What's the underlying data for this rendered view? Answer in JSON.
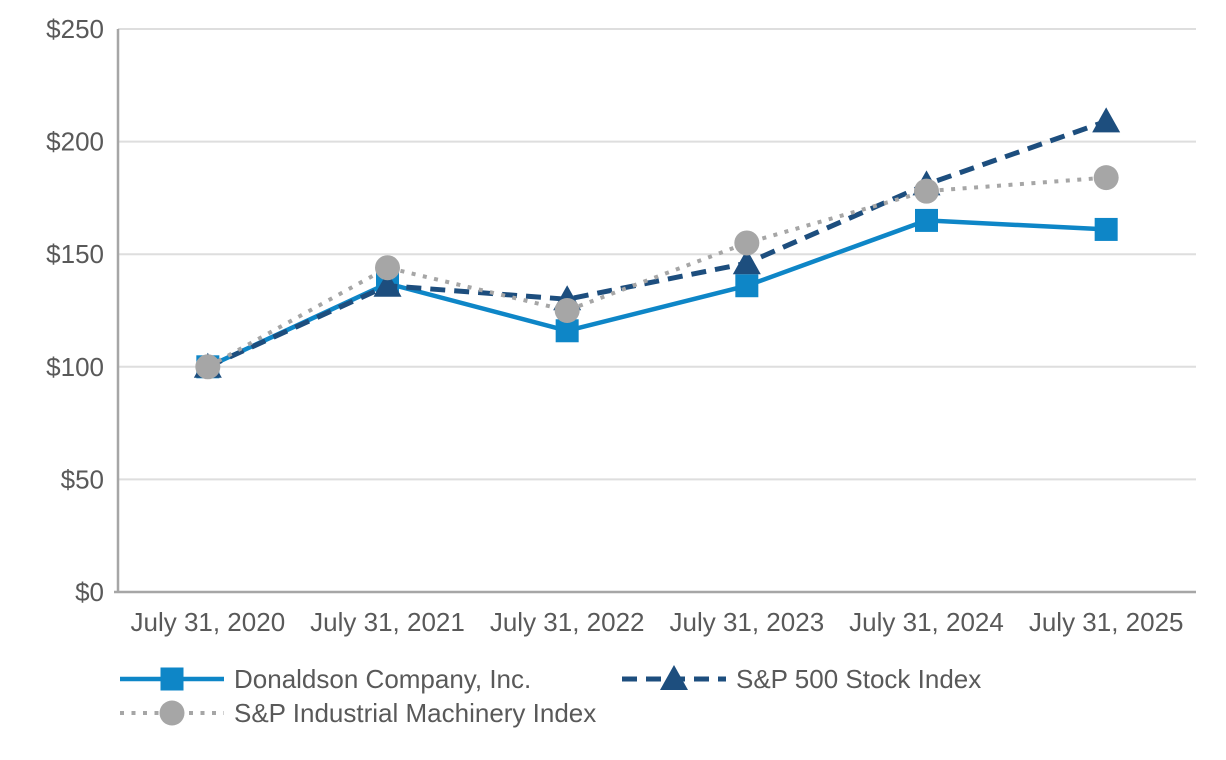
{
  "chart_data": {
    "type": "line",
    "categories": [
      "July 31, 2020",
      "July 31, 2021",
      "July 31, 2022",
      "July 31, 2023",
      "July 31, 2024",
      "July 31, 2025"
    ],
    "series": [
      {
        "name": "Donaldson Company, Inc.",
        "marker": "square",
        "line_style": "solid",
        "color": "#0e86c7",
        "values": [
          100,
          137,
          116,
          136,
          165,
          161
        ]
      },
      {
        "name": "S&P 500 Stock Index",
        "marker": "triangle",
        "line_style": "dashed",
        "color": "#1d4e7e",
        "values": [
          100,
          136,
          130,
          146,
          181,
          209
        ]
      },
      {
        "name": "S&P Industrial Machinery Index",
        "marker": "circle",
        "line_style": "dotted",
        "color": "#a6a6a6",
        "values": [
          100,
          144,
          125,
          155,
          178,
          184
        ]
      }
    ],
    "y_axis": {
      "min": 0,
      "max": 250,
      "ticks": [
        {
          "label": "$0",
          "value": 0
        },
        {
          "label": "$50",
          "value": 50
        },
        {
          "label": "$100",
          "value": 100
        },
        {
          "label": "$150",
          "value": 150
        },
        {
          "label": "$200",
          "value": 200
        },
        {
          "label": "$250",
          "value": 250
        }
      ]
    },
    "grid": true,
    "legend_position": "bottom",
    "colors": {
      "axis_text": "#595959",
      "gridline": "#dedede",
      "axis_line": "#a6a6a6",
      "background": "#ffffff"
    }
  }
}
